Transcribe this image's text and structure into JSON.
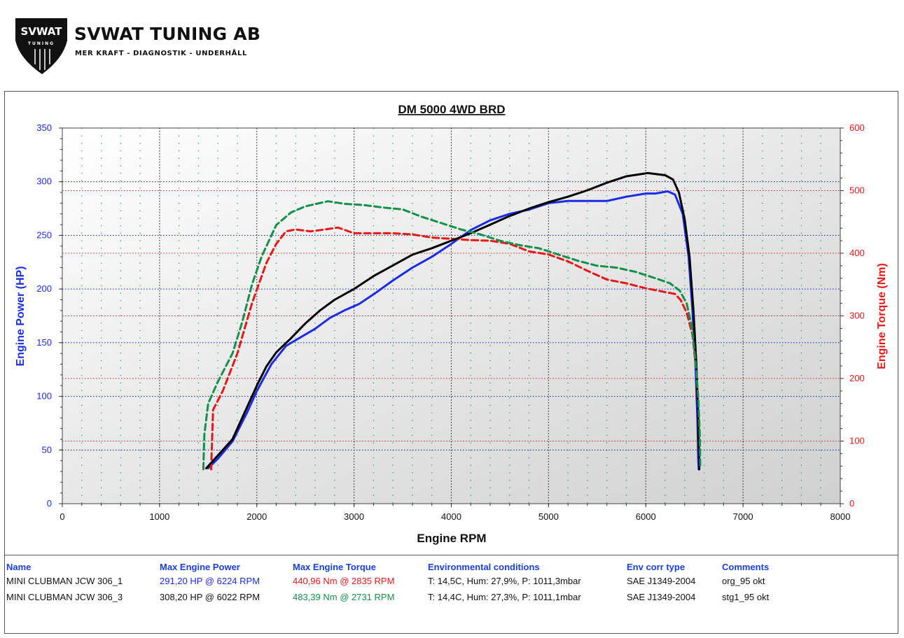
{
  "header": {
    "logo_text": "SVWAT",
    "logo_subtext": "TUNING",
    "company": "SVWAT TUNING AB",
    "tagline": "MER KRAFT - DIAGNOSTIK - UNDERHÅLL"
  },
  "colors": {
    "power_axis": "#1a2ce8",
    "torque_axis": "#e81818",
    "run1_power": "#1a2ce8",
    "run1_torque": "#e81818",
    "run2_power": "#000000",
    "run2_torque": "#13904a"
  },
  "chart_data": {
    "type": "line",
    "title": "DM 5000 4WD BRD",
    "xlabel": "Engine RPM",
    "ylabel_left": "Engine Power (HP)",
    "ylabel_right": "Engine Torque (Nm)",
    "xlim": [
      0,
      8000
    ],
    "ylim_left": [
      0,
      350
    ],
    "ylim_right": [
      0,
      600
    ],
    "x_ticks": [
      0,
      1000,
      2000,
      3000,
      4000,
      5000,
      6000,
      7000,
      8000
    ],
    "y_left_ticks": [
      0,
      50,
      100,
      150,
      200,
      250,
      300,
      350
    ],
    "y_right_ticks": [
      0,
      100,
      200,
      300,
      400,
      500,
      600
    ],
    "grid": true,
    "series": [
      {
        "key": "run1_power",
        "axis": "left",
        "style": "solid",
        "points": [
          [
            1500,
            33
          ],
          [
            1600,
            42
          ],
          [
            1750,
            58
          ],
          [
            1900,
            85
          ],
          [
            2000,
            105
          ],
          [
            2150,
            130
          ],
          [
            2300,
            147
          ],
          [
            2450,
            155
          ],
          [
            2600,
            163
          ],
          [
            2750,
            173
          ],
          [
            2900,
            180
          ],
          [
            3050,
            186
          ],
          [
            3200,
            195
          ],
          [
            3400,
            208
          ],
          [
            3600,
            220
          ],
          [
            3800,
            230
          ],
          [
            4000,
            242
          ],
          [
            4200,
            255
          ],
          [
            4400,
            264
          ],
          [
            4600,
            270
          ],
          [
            4800,
            274
          ],
          [
            5000,
            280
          ],
          [
            5200,
            282
          ],
          [
            5400,
            282
          ],
          [
            5600,
            282
          ],
          [
            5800,
            286
          ],
          [
            6000,
            289
          ],
          [
            6100,
            289
          ],
          [
            6224,
            291
          ],
          [
            6300,
            288
          ],
          [
            6380,
            270
          ],
          [
            6440,
            230
          ],
          [
            6480,
            180
          ],
          [
            6510,
            130
          ],
          [
            6530,
            80
          ],
          [
            6540,
            40
          ],
          [
            6545,
            32
          ]
        ]
      },
      {
        "key": "run1_torque",
        "axis": "right",
        "style": "dashed",
        "points": [
          [
            1530,
            55
          ],
          [
            1550,
            150
          ],
          [
            1650,
            180
          ],
          [
            1800,
            240
          ],
          [
            1950,
            320
          ],
          [
            2100,
            385
          ],
          [
            2200,
            415
          ],
          [
            2300,
            435
          ],
          [
            2400,
            438
          ],
          [
            2550,
            435
          ],
          [
            2700,
            438
          ],
          [
            2835,
            441
          ],
          [
            3000,
            432
          ],
          [
            3200,
            432
          ],
          [
            3400,
            432
          ],
          [
            3600,
            430
          ],
          [
            3800,
            425
          ],
          [
            4000,
            423
          ],
          [
            4200,
            421
          ],
          [
            4400,
            420
          ],
          [
            4600,
            415
          ],
          [
            4800,
            403
          ],
          [
            5000,
            398
          ],
          [
            5200,
            387
          ],
          [
            5400,
            372
          ],
          [
            5600,
            358
          ],
          [
            5800,
            352
          ],
          [
            6000,
            344
          ],
          [
            6200,
            338
          ],
          [
            6300,
            335
          ],
          [
            6360,
            325
          ],
          [
            6420,
            305
          ],
          [
            6480,
            270
          ],
          [
            6520,
            210
          ],
          [
            6540,
            140
          ],
          [
            6550,
            80
          ],
          [
            6555,
            55
          ]
        ]
      },
      {
        "key": "run2_power",
        "axis": "left",
        "style": "solid",
        "points": [
          [
            1480,
            33
          ],
          [
            1600,
            45
          ],
          [
            1750,
            60
          ],
          [
            1900,
            90
          ],
          [
            2000,
            110
          ],
          [
            2100,
            128
          ],
          [
            2200,
            141
          ],
          [
            2350,
            154
          ],
          [
            2500,
            168
          ],
          [
            2650,
            180
          ],
          [
            2800,
            190
          ],
          [
            3000,
            200
          ],
          [
            3200,
            212
          ],
          [
            3400,
            222
          ],
          [
            3600,
            232
          ],
          [
            3800,
            238
          ],
          [
            4000,
            245
          ],
          [
            4200,
            252
          ],
          [
            4400,
            260
          ],
          [
            4600,
            268
          ],
          [
            4800,
            275
          ],
          [
            5000,
            281
          ],
          [
            5200,
            286
          ],
          [
            5400,
            292
          ],
          [
            5600,
            299
          ],
          [
            5800,
            305
          ],
          [
            6022,
            308
          ],
          [
            6200,
            306
          ],
          [
            6280,
            302
          ],
          [
            6340,
            290
          ],
          [
            6400,
            265
          ],
          [
            6450,
            230
          ],
          [
            6490,
            180
          ],
          [
            6520,
            130
          ],
          [
            6540,
            80
          ],
          [
            6548,
            40
          ],
          [
            6550,
            32
          ]
        ]
      },
      {
        "key": "run2_torque",
        "axis": "right",
        "style": "dashed",
        "points": [
          [
            1450,
            55
          ],
          [
            1460,
            110
          ],
          [
            1500,
            160
          ],
          [
            1600,
            195
          ],
          [
            1750,
            240
          ],
          [
            1850,
            290
          ],
          [
            1950,
            350
          ],
          [
            2050,
            395
          ],
          [
            2200,
            445
          ],
          [
            2350,
            465
          ],
          [
            2500,
            475
          ],
          [
            2731,
            483
          ],
          [
            2900,
            479
          ],
          [
            3100,
            477
          ],
          [
            3300,
            473
          ],
          [
            3500,
            470
          ],
          [
            3700,
            458
          ],
          [
            3900,
            448
          ],
          [
            4100,
            438
          ],
          [
            4300,
            430
          ],
          [
            4500,
            420
          ],
          [
            4700,
            413
          ],
          [
            4900,
            408
          ],
          [
            5100,
            398
          ],
          [
            5300,
            388
          ],
          [
            5500,
            380
          ],
          [
            5700,
            377
          ],
          [
            5900,
            370
          ],
          [
            6100,
            360
          ],
          [
            6250,
            352
          ],
          [
            6350,
            340
          ],
          [
            6420,
            320
          ],
          [
            6470,
            285
          ],
          [
            6510,
            230
          ],
          [
            6540,
            170
          ],
          [
            6555,
            110
          ],
          [
            6560,
            60
          ]
        ]
      }
    ]
  },
  "results": {
    "headers": {
      "name": "Name",
      "max_power": "Max Engine Power",
      "max_torque": "Max Engine Torque",
      "env": "Environmental conditions",
      "env_corr": "Env corr type",
      "comments": "Comments"
    },
    "rows": [
      {
        "name": "MINI CLUBMAN JCW 306_1",
        "max_power": "291,20 HP @ 6224 RPM",
        "max_torque": "440,96 Nm @ 2835 RPM",
        "env": "T: 14,5C, Hum: 27,9%, P: 1011,3mbar",
        "env_corr": "SAE J1349-2004",
        "comments": "org_95 okt"
      },
      {
        "name": "MINI CLUBMAN JCW 306_3",
        "max_power": "308,20 HP @ 6022 RPM",
        "max_torque": "483,39 Nm @ 2731 RPM",
        "env": "T: 14,4C, Hum: 27,3%, P: 1011,1mbar",
        "env_corr": "SAE J1349-2004",
        "comments": "stg1_95 okt"
      }
    ]
  }
}
